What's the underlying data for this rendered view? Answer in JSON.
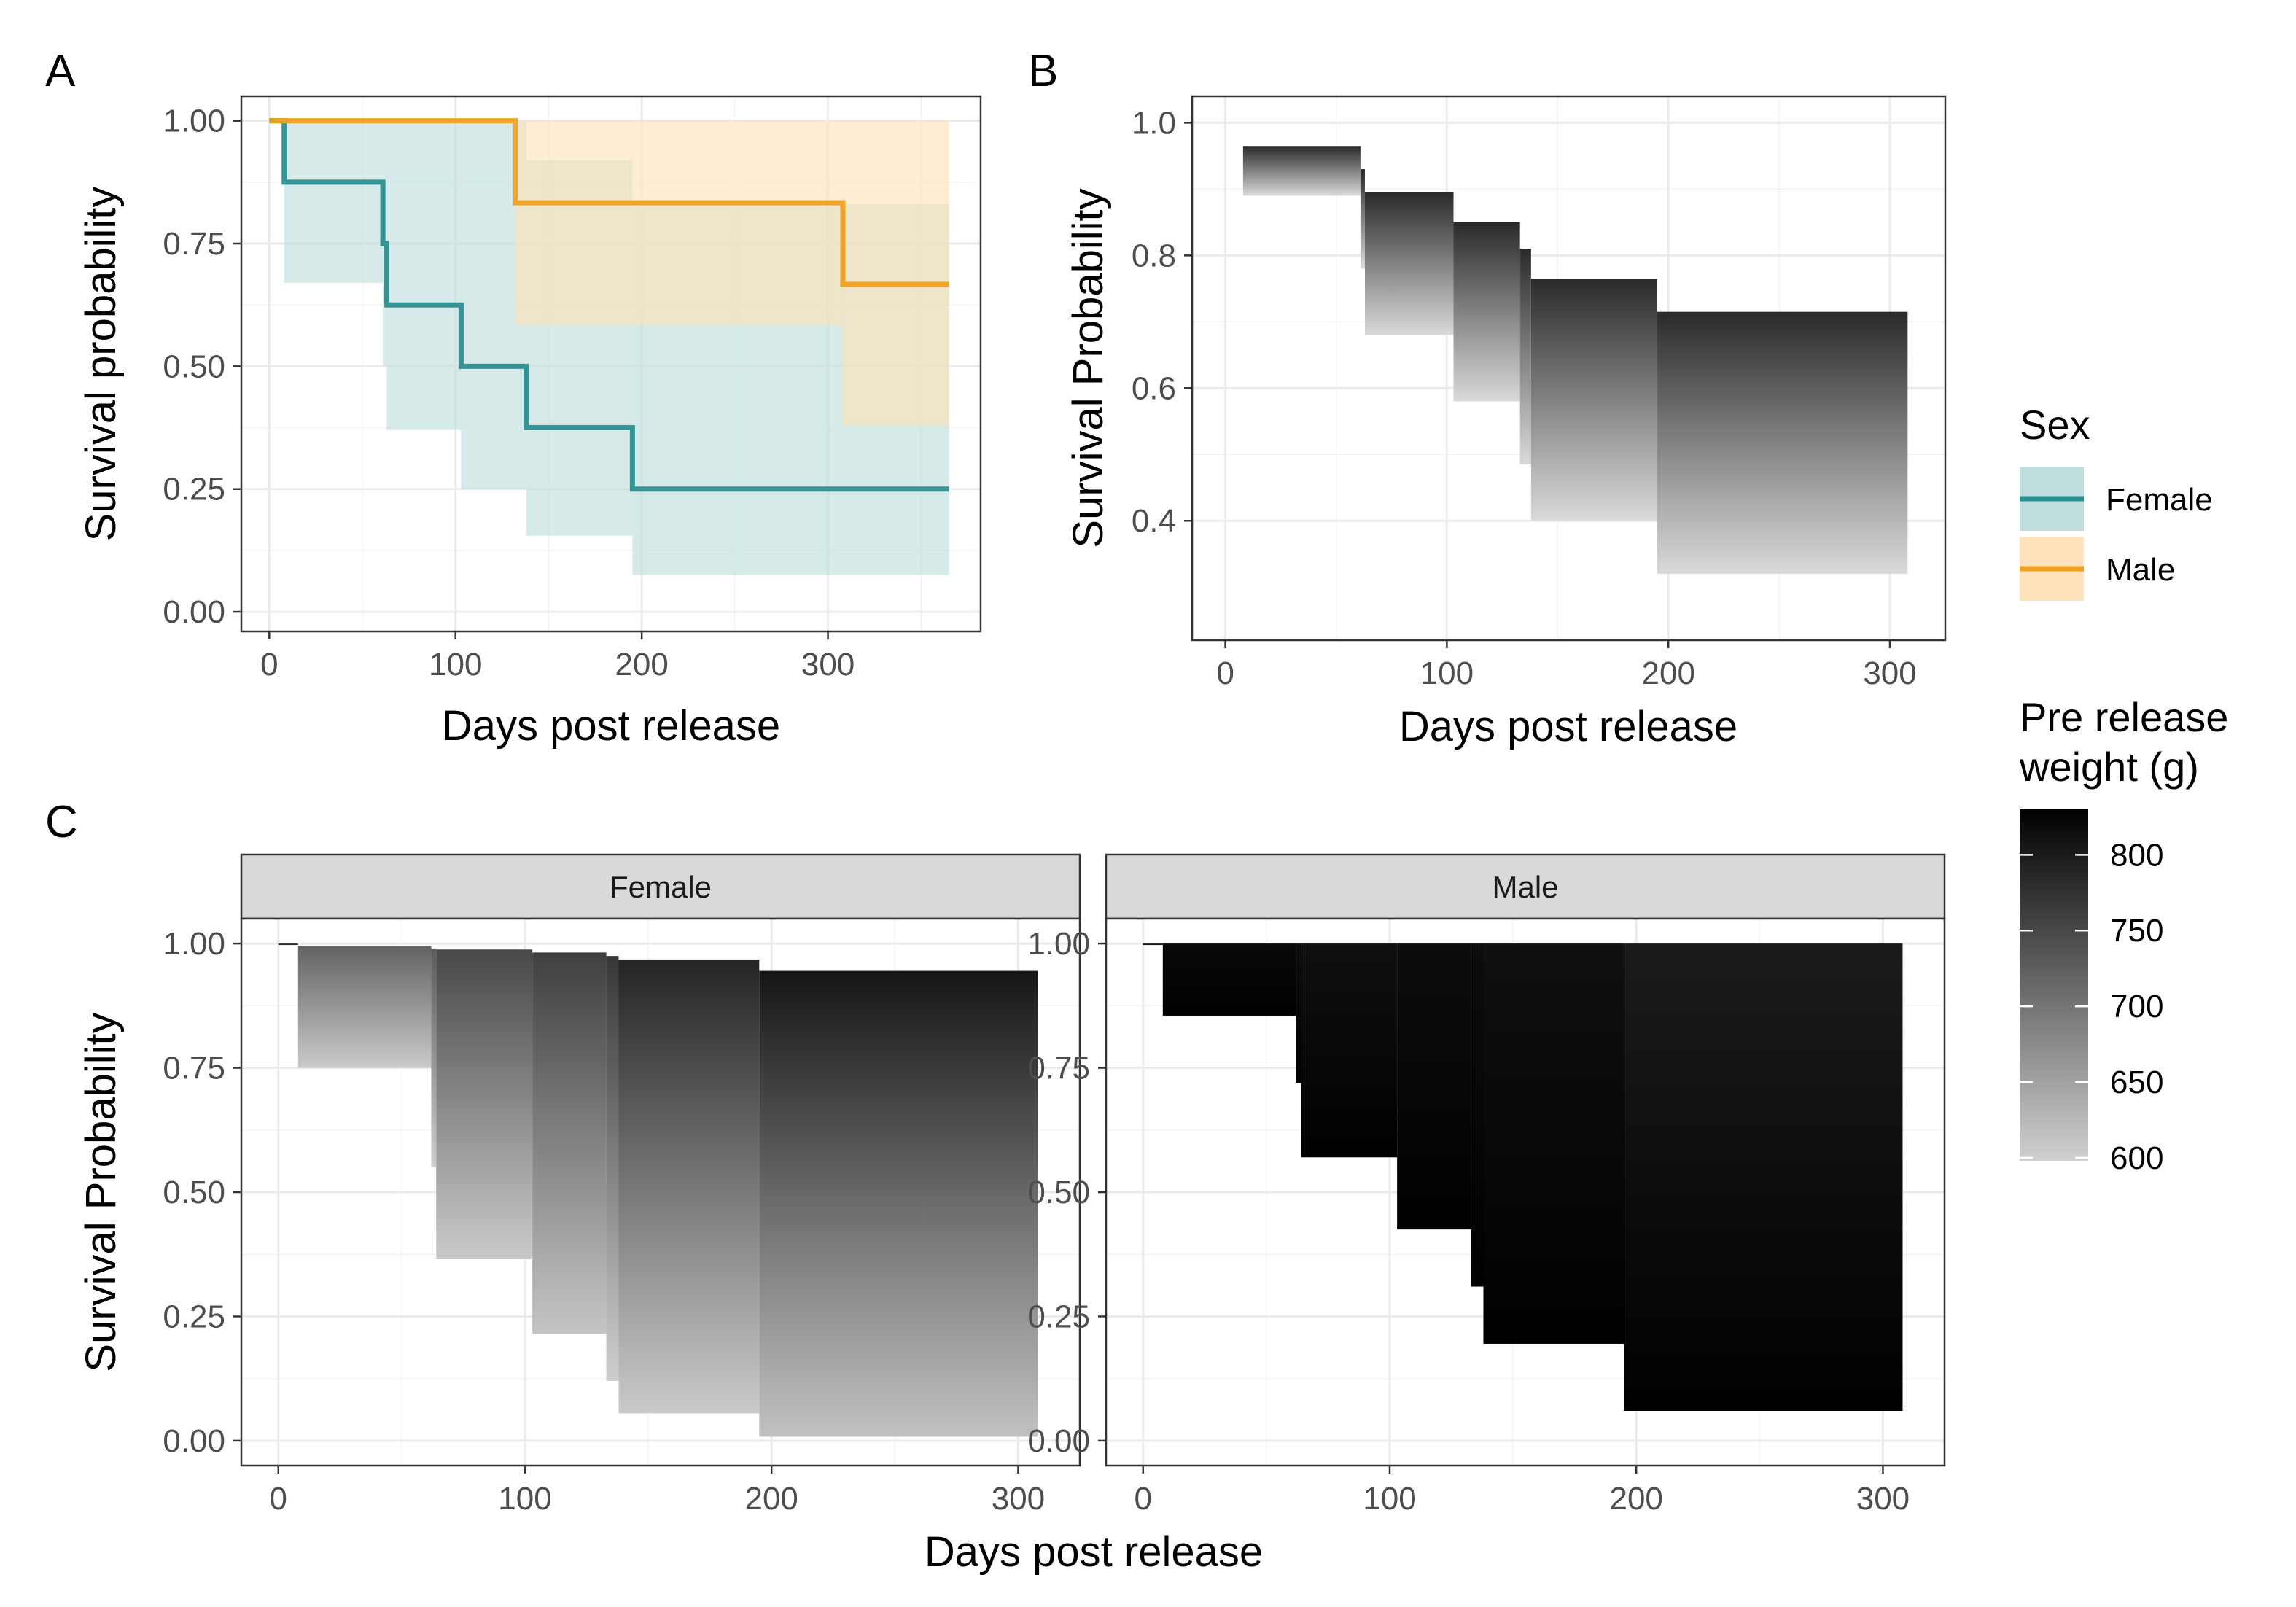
{
  "figure": {
    "panel_letters": [
      "A",
      "B",
      "C"
    ],
    "legend_sex": {
      "title": "Sex",
      "items": [
        {
          "label": "Female",
          "color": "#2a9090",
          "fill": "#bfdedd"
        },
        {
          "label": "Male",
          "color": "#f0a020",
          "fill": "#fde2bb"
        }
      ]
    },
    "legend_weight": {
      "title_line1": "Pre release",
      "title_line2": "weight (g)",
      "breaks": [
        600,
        650,
        700,
        750,
        800
      ],
      "range": [
        598,
        830
      ],
      "low_color": "#d0d0d0",
      "high_color": "#000000"
    }
  },
  "chart_data": [
    {
      "panel": "A",
      "type": "line",
      "step": true,
      "xlabel": "Days post release",
      "ylabel": "Survival probability",
      "xlim": [
        -15,
        382
      ],
      "ylim": [
        -0.04,
        1.05
      ],
      "xticks": [
        0,
        100,
        200,
        300
      ],
      "xtick_labels": [
        "0",
        "100",
        "200",
        "300"
      ],
      "yticks": [
        0,
        0.25,
        0.5,
        0.75,
        1
      ],
      "ytick_labels": [
        "0.00",
        "0.25",
        "0.50",
        "0.75",
        "1.00"
      ],
      "grid": true,
      "legend": "right",
      "series": [
        {
          "name": "Female",
          "color": "#2a9090",
          "band_fill": "#bfdedd",
          "steps": [
            {
              "x0": 0,
              "x1": 8,
              "y": 1.0,
              "lo": 1.0,
              "hi": 1.0
            },
            {
              "x0": 8,
              "x1": 61,
              "y": 0.875,
              "lo": 0.67,
              "hi": 1.0
            },
            {
              "x0": 61,
              "x1": 63,
              "y": 0.75,
              "lo": 0.5,
              "hi": 1.0
            },
            {
              "x0": 63,
              "x1": 103,
              "y": 0.625,
              "lo": 0.37,
              "hi": 1.0
            },
            {
              "x0": 103,
              "x1": 138,
              "y": 0.5,
              "lo": 0.25,
              "hi": 1.0
            },
            {
              "x0": 138,
              "x1": 195,
              "y": 0.375,
              "lo": 0.155,
              "hi": 0.92
            },
            {
              "x0": 195,
              "x1": 365,
              "y": 0.25,
              "lo": 0.075,
              "hi": 0.83
            }
          ]
        },
        {
          "name": "Male",
          "color": "#f0a020",
          "band_fill": "#fde2bb",
          "steps": [
            {
              "x0": 0,
              "x1": 132,
              "y": 1.0,
              "lo": 1.0,
              "hi": 1.0
            },
            {
              "x0": 132,
              "x1": 308,
              "y": 0.833,
              "lo": 0.585,
              "hi": 1.0
            },
            {
              "x0": 308,
              "x1": 365,
              "y": 0.667,
              "lo": 0.38,
              "hi": 1.0
            }
          ]
        }
      ]
    },
    {
      "panel": "B",
      "type": "area",
      "xlabel": "Days post release",
      "ylabel": "Survival Probability",
      "xlim": [
        -15,
        325
      ],
      "ylim": [
        0.22,
        1.04
      ],
      "xticks": [
        0,
        100,
        200,
        300
      ],
      "xtick_labels": [
        "0",
        "100",
        "200",
        "300"
      ],
      "yticks": [
        0.4,
        0.6,
        0.8,
        1.0
      ],
      "ytick_labels": [
        "0.4",
        "0.6",
        "0.8",
        "1.0"
      ],
      "grid": true,
      "blocks": [
        {
          "x0": 8,
          "x1": 61,
          "y_lo": 0.89,
          "y_hi": 0.965
        },
        {
          "x0": 61,
          "x1": 63,
          "y_lo": 0.78,
          "y_hi": 0.93
        },
        {
          "x0": 63,
          "x1": 103,
          "y_lo": 0.68,
          "y_hi": 0.895
        },
        {
          "x0": 103,
          "x1": 133,
          "y_lo": 0.58,
          "y_hi": 0.85
        },
        {
          "x0": 133,
          "x1": 138,
          "y_lo": 0.485,
          "y_hi": 0.81
        },
        {
          "x0": 138,
          "x1": 195,
          "y_lo": 0.4,
          "y_hi": 0.765
        },
        {
          "x0": 195,
          "x1": 308,
          "y_lo": 0.32,
          "y_hi": 0.715
        }
      ]
    },
    {
      "panel": "C",
      "type": "area",
      "facets": [
        "Female",
        "Male"
      ],
      "xlabel": "Days post release",
      "ylabel": "Survival Probability",
      "xlim": [
        -15,
        325
      ],
      "ylim": [
        -0.05,
        1.05
      ],
      "xticks": [
        0,
        100,
        200,
        300
      ],
      "xtick_labels": [
        "0",
        "100",
        "200",
        "300"
      ],
      "yticks": [
        0,
        0.25,
        0.5,
        0.75,
        1
      ],
      "ytick_labels": [
        "0.00",
        "0.25",
        "0.50",
        "0.75",
        "1.00"
      ],
      "grid": true,
      "panels": [
        {
          "facet": "Female",
          "blocks": [
            {
              "x0": 0,
              "x1": 8,
              "y_lo": 0.999,
              "y_hi": 1.0,
              "w_top": 780,
              "w_bottom": 780
            },
            {
              "x0": 8,
              "x1": 62,
              "y_lo": 0.75,
              "y_hi": 0.995,
              "w_top": 720,
              "w_bottom": 605
            },
            {
              "x0": 62,
              "x1": 64,
              "y_lo": 0.55,
              "y_hi": 0.99,
              "w_top": 730,
              "w_bottom": 600
            },
            {
              "x0": 64,
              "x1": 103,
              "y_lo": 0.365,
              "y_hi": 0.988,
              "w_top": 750,
              "w_bottom": 605
            },
            {
              "x0": 103,
              "x1": 133,
              "y_lo": 0.215,
              "y_hi": 0.982,
              "w_top": 760,
              "w_bottom": 610
            },
            {
              "x0": 133,
              "x1": 138,
              "y_lo": 0.12,
              "y_hi": 0.975,
              "w_top": 770,
              "w_bottom": 600
            },
            {
              "x0": 138,
              "x1": 195,
              "y_lo": 0.055,
              "y_hi": 0.968,
              "w_top": 790,
              "w_bottom": 605
            },
            {
              "x0": 195,
              "x1": 308,
              "y_lo": 0.008,
              "y_hi": 0.945,
              "w_top": 805,
              "w_bottom": 615
            }
          ]
        },
        {
          "facet": "Male",
          "blocks": [
            {
              "x0": 0,
              "x1": 8,
              "y_lo": 0.999,
              "y_hi": 1.0,
              "w_top": 800,
              "w_bottom": 800
            },
            {
              "x0": 8,
              "x1": 62,
              "y_lo": 0.855,
              "y_hi": 1.0,
              "w_top": 820,
              "w_bottom": 830
            },
            {
              "x0": 62,
              "x1": 64,
              "y_lo": 0.72,
              "y_hi": 1.0,
              "w_top": 815,
              "w_bottom": 830
            },
            {
              "x0": 64,
              "x1": 103,
              "y_lo": 0.57,
              "y_hi": 1.0,
              "w_top": 812,
              "w_bottom": 830
            },
            {
              "x0": 103,
              "x1": 133,
              "y_lo": 0.425,
              "y_hi": 1.0,
              "w_top": 815,
              "w_bottom": 830
            },
            {
              "x0": 133,
              "x1": 138,
              "y_lo": 0.31,
              "y_hi": 1.0,
              "w_top": 815,
              "w_bottom": 830
            },
            {
              "x0": 138,
              "x1": 195,
              "y_lo": 0.195,
              "y_hi": 1.0,
              "w_top": 812,
              "w_bottom": 830
            },
            {
              "x0": 195,
              "x1": 308,
              "y_lo": 0.06,
              "y_hi": 1.0,
              "w_top": 800,
              "w_bottom": 830
            }
          ]
        }
      ]
    }
  ]
}
